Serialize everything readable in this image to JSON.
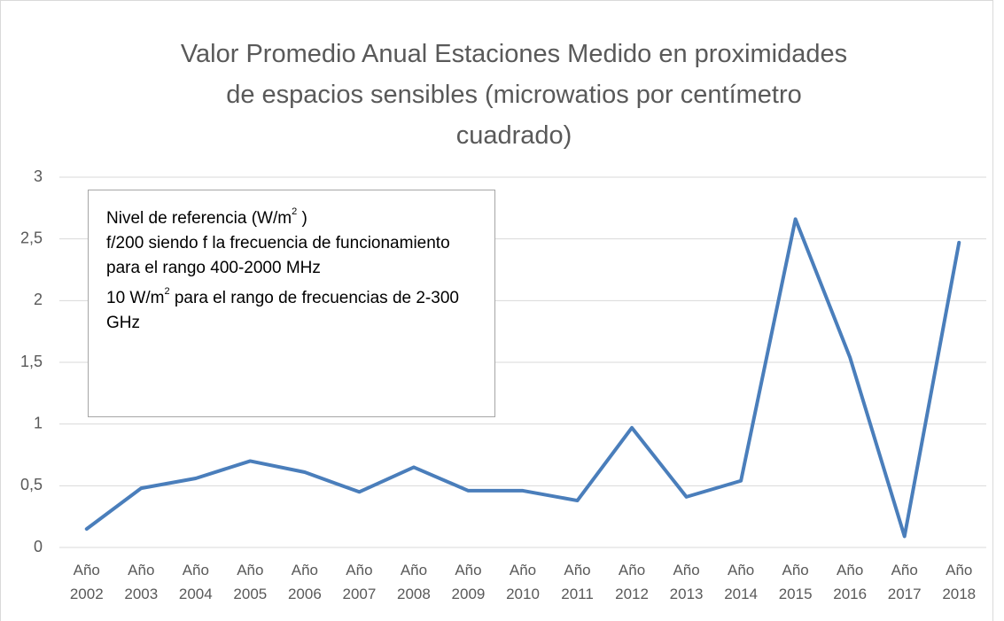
{
  "chart_data": {
    "type": "line",
    "title": "Valor Promedio Anual Estaciones Medido en proximidades de espacios sensibles (microwatios por centímetro cuadrado)",
    "categories": [
      "Año 2002",
      "Año 2003",
      "Año 2004",
      "Año 2005",
      "Año 2006",
      "Año 2007",
      "Año 2008",
      "Año 2009",
      "Año 2010",
      "Año 2011",
      "Año 2012",
      "Año 2013",
      "Año 2014",
      "Año 2015",
      "Año 2016",
      "Año 2017",
      "Año 2018"
    ],
    "series": [
      {
        "name": "Valor Promedio Anual",
        "color": "#4a7ebb",
        "values": [
          0.15,
          0.48,
          0.56,
          0.7,
          0.61,
          0.45,
          0.65,
          0.46,
          0.46,
          0.38,
          0.97,
          0.41,
          0.54,
          2.66,
          1.54,
          0.09,
          2.47
        ]
      }
    ],
    "ylim": [
      0,
      3
    ],
    "yticks": [
      0,
      {
        "value": 0.5,
        "label": "0,5"
      },
      1,
      {
        "value": 1.5,
        "label": "1,5"
      },
      2,
      {
        "value": 2.5,
        "label": "2,5"
      },
      3
    ],
    "grid": true,
    "annotation": {
      "line1": {
        "text": "Nivel de referencia (W/m",
        "sup": "2",
        "after": " )"
      },
      "line2": "f/200 siendo f la frecuencia de funcionamiento para el rango 400-2000 MHz",
      "line3": {
        "text": "10 W/m",
        "sup": "2",
        "after": " para el rango de frecuencias de 2-300 GHz"
      }
    }
  }
}
